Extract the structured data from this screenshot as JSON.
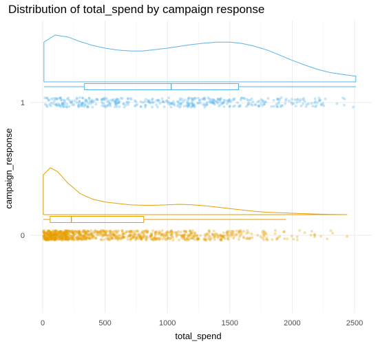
{
  "chart_data": {
    "type": "raincloud",
    "title": "Distribution of total_spend by campaign response",
    "xlabel": "total_spend",
    "ylabel": "campaign_response",
    "xlim": [
      0,
      2550
    ],
    "x_ticks": [
      0,
      500,
      1000,
      1500,
      2000,
      2500
    ],
    "grid": true,
    "legend": "none",
    "groups": [
      {
        "category": "0",
        "color": "#E69F00",
        "box": {
          "min": 5,
          "q1": 60,
          "median": 230,
          "q3": 810,
          "max": 1950
        },
        "outliers": [
          1960,
          2010,
          2040,
          2060,
          2100,
          2180,
          2230,
          2280,
          2310,
          2440
        ],
        "density": {
          "x": [
            5,
            60,
            120,
            200,
            300,
            400,
            500,
            600,
            700,
            800,
            900,
            1000,
            1100,
            1200,
            1300,
            1400,
            1500,
            1600,
            1700,
            1800,
            1900,
            2000,
            2100,
            2200,
            2300,
            2440
          ],
          "y": [
            0.85,
            1.0,
            0.92,
            0.68,
            0.45,
            0.33,
            0.27,
            0.24,
            0.21,
            0.2,
            0.2,
            0.21,
            0.22,
            0.21,
            0.19,
            0.16,
            0.13,
            0.1,
            0.07,
            0.05,
            0.04,
            0.03,
            0.02,
            0.012,
            0.006,
            0.0
          ]
        }
      },
      {
        "category": "1",
        "color": "#56B4E9",
        "box": {
          "min": 10,
          "q1": 335,
          "median": 1030,
          "q3": 1570,
          "max": 2510
        },
        "outliers": [],
        "density": {
          "x": [
            10,
            100,
            200,
            300,
            400,
            500,
            600,
            700,
            800,
            900,
            1000,
            1100,
            1200,
            1300,
            1400,
            1500,
            1600,
            1700,
            1800,
            1900,
            2000,
            2100,
            2200,
            2300,
            2400,
            2510
          ],
          "y": [
            0.85,
            1.0,
            0.96,
            0.86,
            0.78,
            0.72,
            0.68,
            0.66,
            0.66,
            0.69,
            0.72,
            0.76,
            0.8,
            0.83,
            0.85,
            0.85,
            0.82,
            0.76,
            0.68,
            0.57,
            0.46,
            0.36,
            0.27,
            0.2,
            0.16,
            0.12
          ]
        }
      }
    ]
  }
}
